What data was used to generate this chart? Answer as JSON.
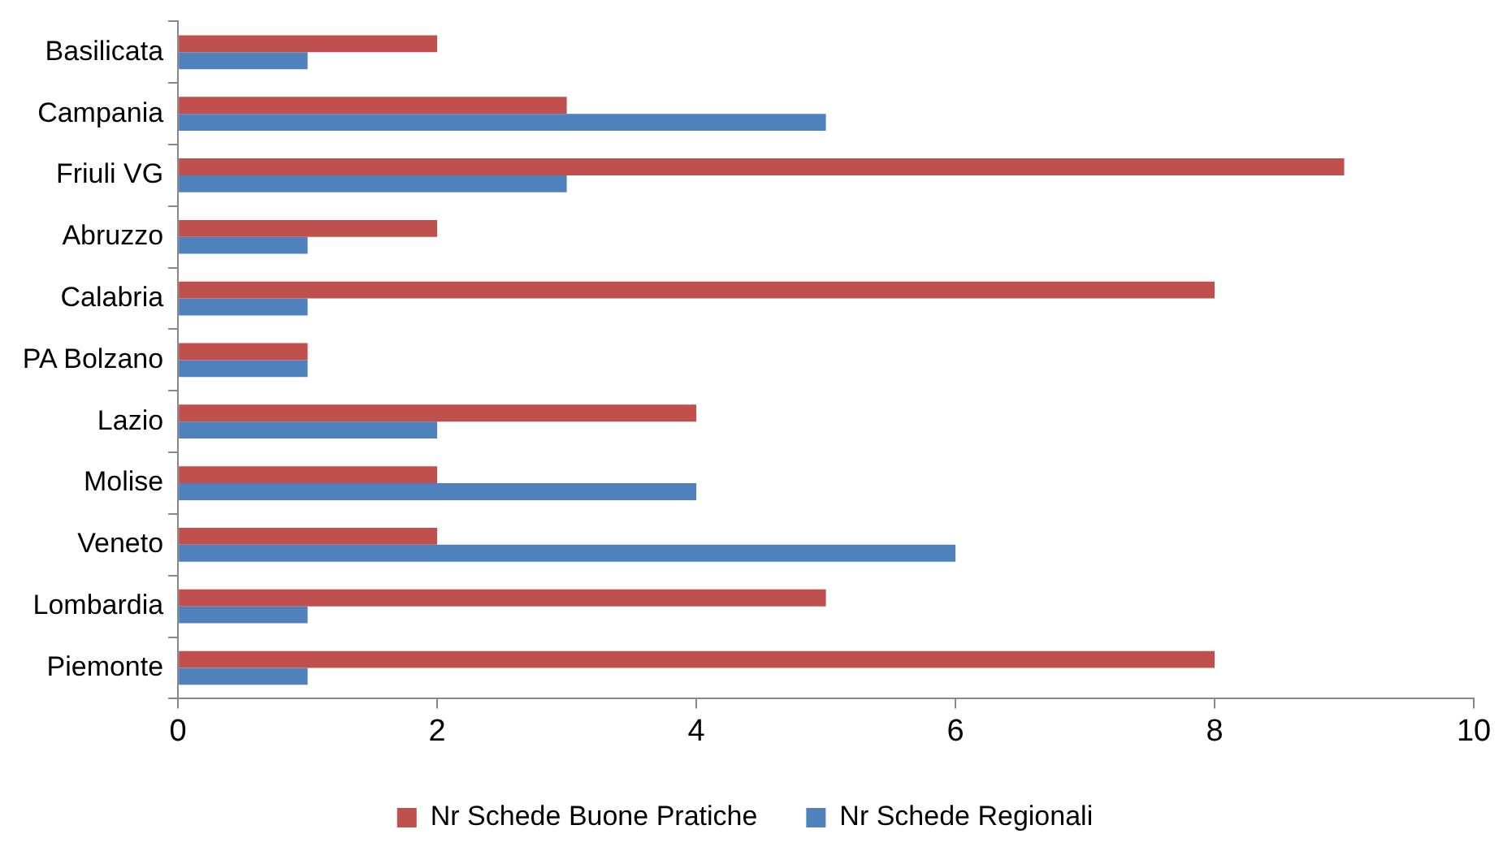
{
  "chart_data": {
    "type": "bar",
    "orientation": "horizontal",
    "categories": [
      "Basilicata",
      "Campania",
      "Friuli VG",
      "Abruzzo",
      "Calabria",
      "PA Bolzano",
      "Lazio",
      "Molise",
      "Veneto",
      "Lombardia",
      "Piemonte"
    ],
    "series": [
      {
        "name": "Nr Schede Buone Pratiche",
        "color": "#c0504d",
        "values": [
          2,
          3,
          9,
          2,
          8,
          1,
          4,
          2,
          2,
          5,
          8
        ]
      },
      {
        "name": "Nr Schede Regionali",
        "color": "#4f81bd",
        "values": [
          1,
          5,
          3,
          1,
          1,
          1,
          2,
          4,
          6,
          1,
          1
        ]
      }
    ],
    "xlim": [
      0,
      10
    ],
    "xticks": [
      0,
      2,
      4,
      6,
      8,
      10
    ],
    "legend": "bottom"
  }
}
